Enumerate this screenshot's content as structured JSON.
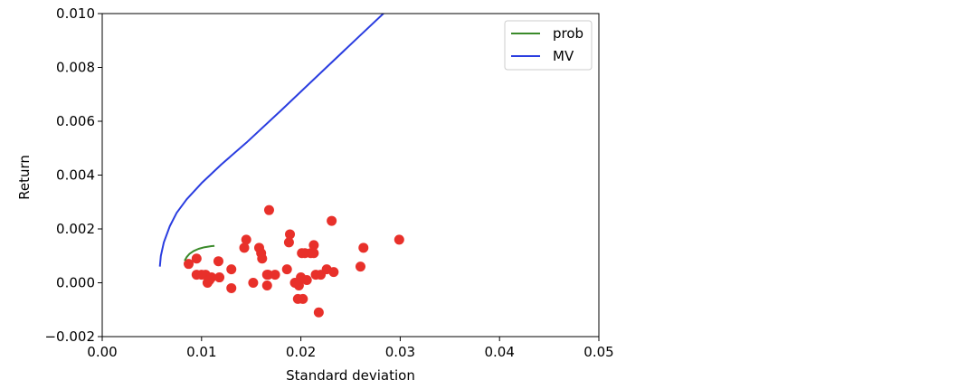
{
  "chart_data": {
    "type": "scatter",
    "xlabel": "Standard deviation",
    "ylabel": "Return",
    "xlim": [
      0.0,
      0.05
    ],
    "ylim": [
      -0.002,
      0.01
    ],
    "x_ticks": [
      "0.00",
      "0.01",
      "0.02",
      "0.03",
      "0.04",
      "0.05"
    ],
    "x_tick_values": [
      0.0,
      0.01,
      0.02,
      0.03,
      0.04,
      0.05
    ],
    "y_ticks": [
      "−0.002",
      "0.000",
      "0.002",
      "0.004",
      "0.006",
      "0.008",
      "0.010"
    ],
    "y_tick_values": [
      -0.002,
      0.0,
      0.002,
      0.004,
      0.006,
      0.008,
      0.01
    ],
    "grid": false,
    "legend_position": "top-right",
    "series": [
      {
        "name": "prob",
        "kind": "line",
        "color": "#3a8a2a",
        "x": [
          0.0083,
          0.0085,
          0.0088,
          0.0092,
          0.0097,
          0.0103,
          0.011,
          0.0113
        ],
        "y": [
          0.00082,
          0.00095,
          0.00108,
          0.00118,
          0.00126,
          0.00132,
          0.00136,
          0.00137
        ]
      },
      {
        "name": "MV",
        "kind": "line",
        "color": "#2a3de0",
        "x": [
          0.0058,
          0.0059,
          0.0062,
          0.0068,
          0.0075,
          0.0085,
          0.01,
          0.012,
          0.0145,
          0.018,
          0.022,
          0.026,
          0.0286
        ],
        "y": [
          0.0006,
          0.001,
          0.0015,
          0.0021,
          0.0026,
          0.0031,
          0.0037,
          0.0044,
          0.0052,
          0.0064,
          0.0078,
          0.0092,
          0.0101
        ]
      },
      {
        "name": "",
        "kind": "scatter",
        "color": "#e8302a",
        "x": [
          0.0087,
          0.0095,
          0.0095,
          0.01,
          0.0104,
          0.0106,
          0.0108,
          0.011,
          0.0117,
          0.0118,
          0.013,
          0.013,
          0.0143,
          0.0145,
          0.0152,
          0.0158,
          0.016,
          0.0161,
          0.0166,
          0.0166,
          0.0167,
          0.0168,
          0.0174,
          0.0186,
          0.0188,
          0.0189,
          0.0194,
          0.0197,
          0.0198,
          0.02,
          0.0201,
          0.0202,
          0.0204,
          0.0206,
          0.021,
          0.0213,
          0.0213,
          0.0215,
          0.0218,
          0.022,
          0.0226,
          0.0231,
          0.0233,
          0.026,
          0.0263,
          0.0299
        ],
        "y": [
          0.0007,
          0.0009,
          0.0003,
          0.0003,
          0.0003,
          0.0,
          0.0001,
          0.0002,
          0.0008,
          0.0002,
          -0.0002,
          0.0005,
          0.0013,
          0.0016,
          0.0,
          0.0013,
          0.0011,
          0.0009,
          0.0003,
          -0.0001,
          0.0003,
          0.0027,
          0.0003,
          0.0005,
          0.0015,
          0.0018,
          0.0,
          -0.0006,
          -0.0001,
          0.0002,
          0.0011,
          -0.0006,
          0.0011,
          0.0001,
          0.0011,
          0.0011,
          0.0014,
          0.0003,
          -0.0011,
          0.0003,
          0.0005,
          0.0023,
          0.0004,
          0.0006,
          0.0013,
          0.0016
        ]
      }
    ]
  }
}
